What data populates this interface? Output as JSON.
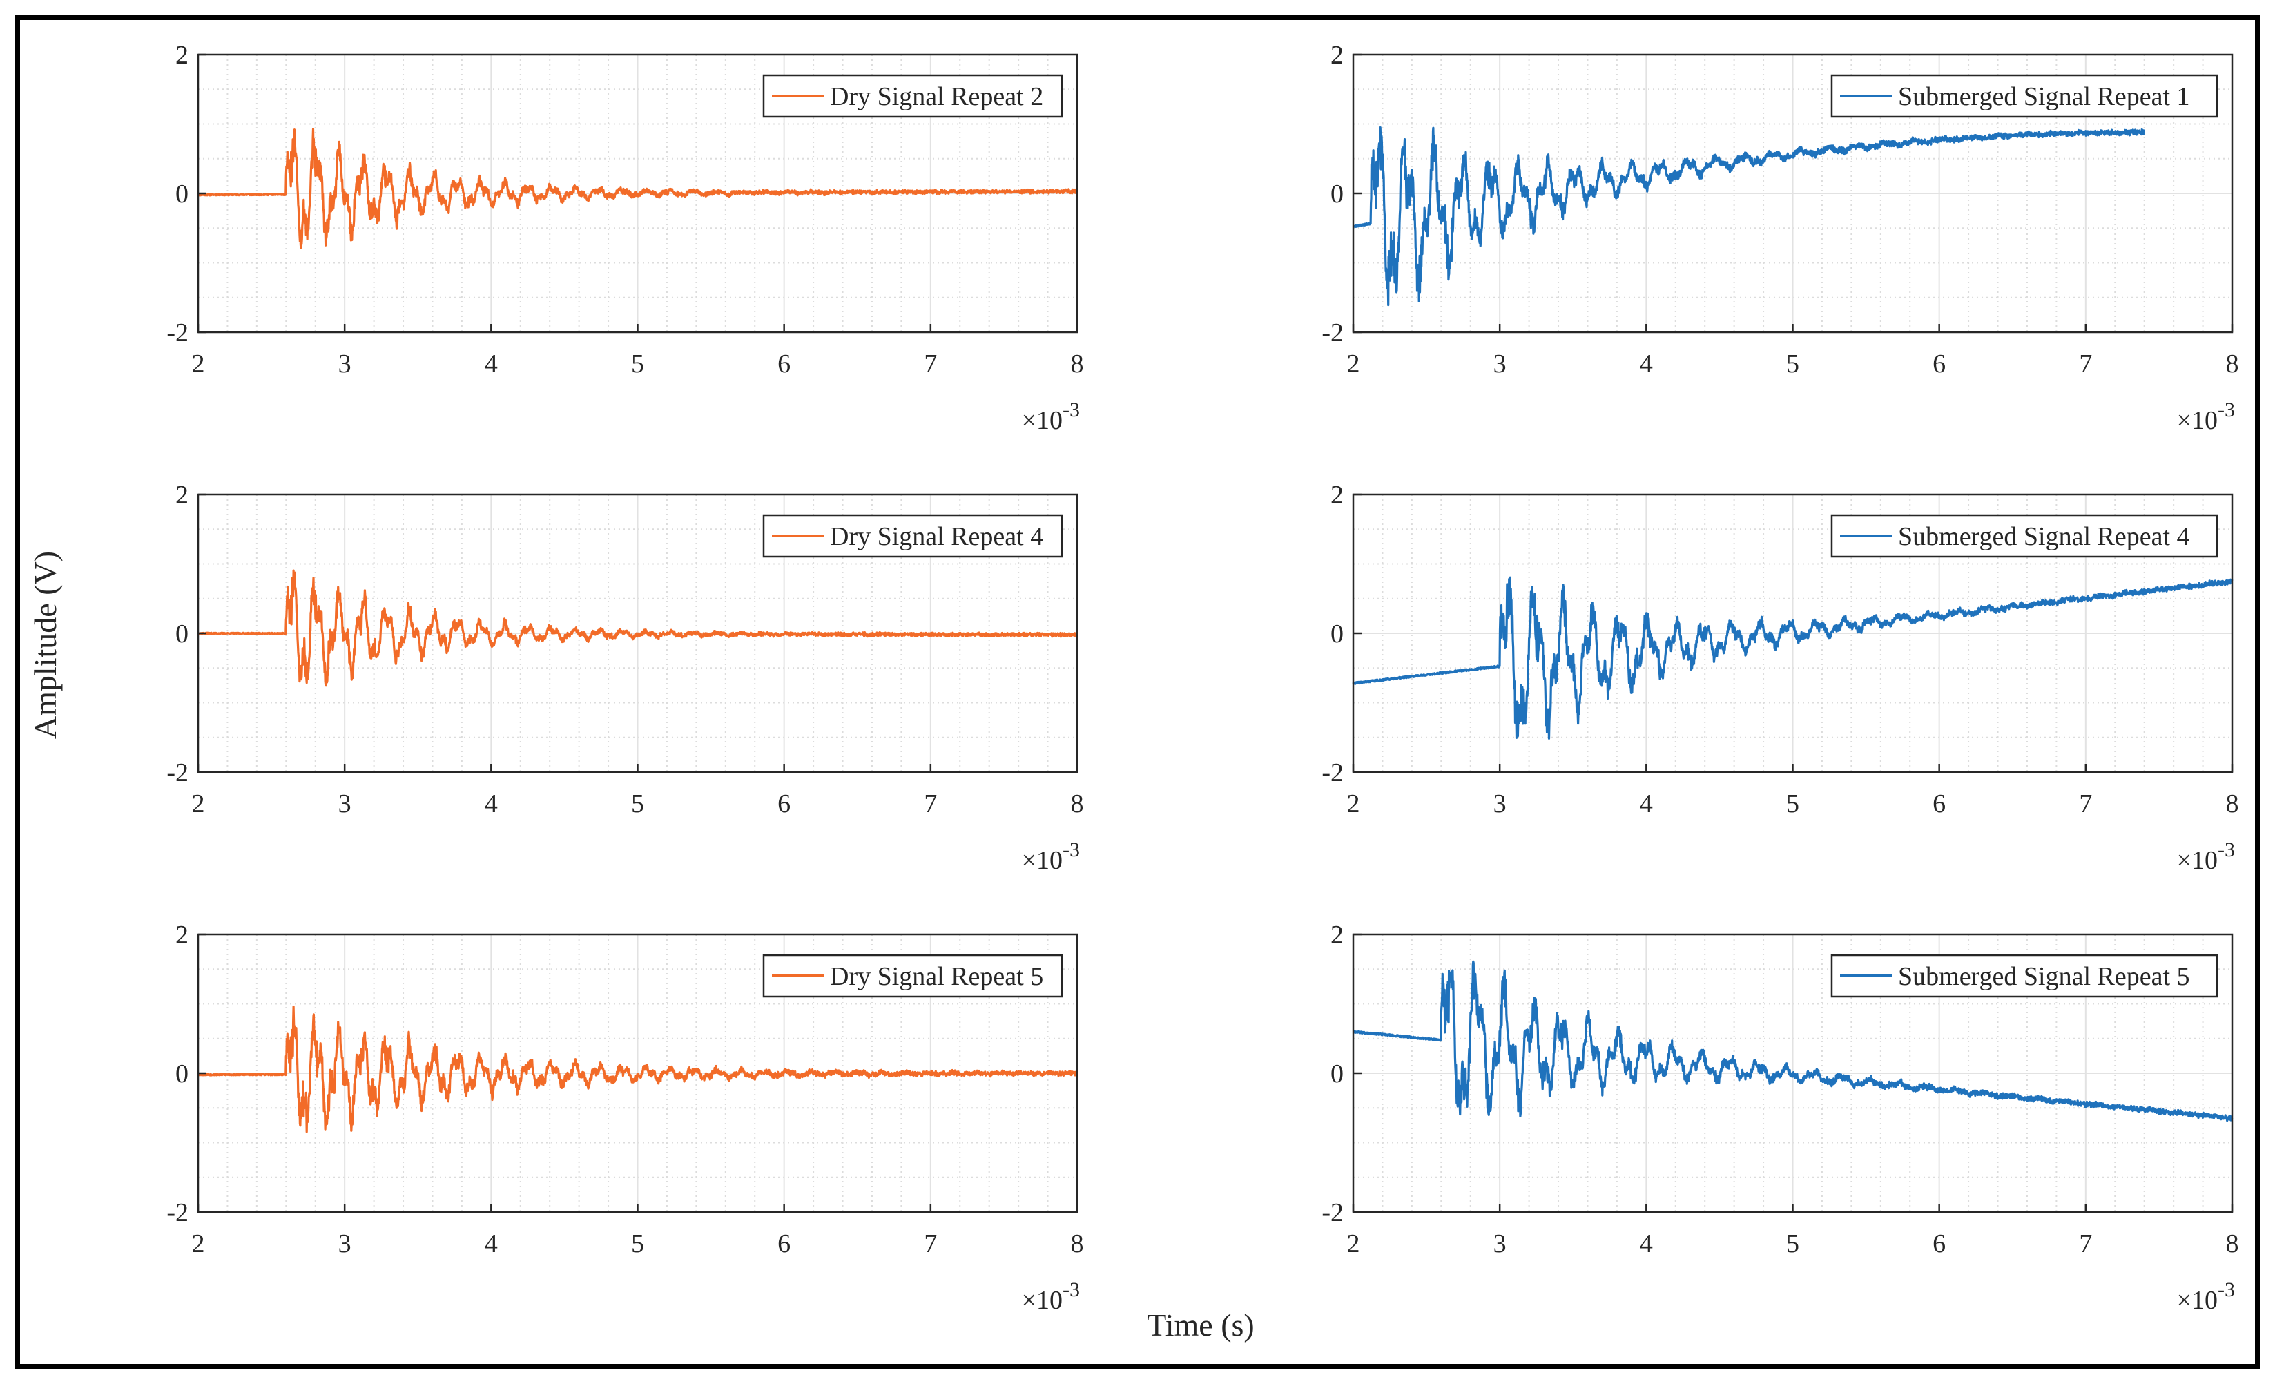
{
  "figure": {
    "ylabel": "Amplitude (V)",
    "xlabel": "Time (s)",
    "x_multiplier": "×10",
    "x_multiplier_exp": "-3"
  },
  "colors": {
    "dry": "#F26B28",
    "submerged": "#1F72BC",
    "grid": "#DCDCDC",
    "axis": "#262626"
  },
  "chart_data": [
    {
      "type": "line",
      "legend": "Dry Signal Repeat 2",
      "color": "#F26B28",
      "xlim": [
        0.002,
        0.008
      ],
      "ylim": [
        -2,
        2
      ],
      "xticks": [
        "2",
        "3",
        "4",
        "5",
        "6",
        "7",
        "8"
      ],
      "yticks": [
        "2",
        "0",
        "-2"
      ],
      "signal": {
        "onset": 0.0026,
        "amplitude": 0.92,
        "decay": 0.00082,
        "freq": 6200,
        "noise": 0.045,
        "start_level": -0.02,
        "end_level": 0.03,
        "seed": 11
      }
    },
    {
      "type": "line",
      "legend": "Submerged Signal Repeat 1",
      "color": "#1F72BC",
      "xlim": [
        0.002,
        0.008
      ],
      "ylim": [
        -2,
        2
      ],
      "xticks": [
        "2",
        "3",
        "4",
        "5",
        "6",
        "7",
        "8"
      ],
      "yticks": [
        "2",
        "0",
        "-2"
      ],
      "signal": {
        "onset": 0.00212,
        "amplitude": 1.4,
        "decay": 0.0009,
        "freq": 5200,
        "noise": 0.06,
        "start_level": -0.48,
        "end_level": 0.88,
        "x_end": 0.0074,
        "seed": 23
      }
    },
    {
      "type": "line",
      "legend": "Dry Signal Repeat 4",
      "color": "#F26B28",
      "xlim": [
        0.002,
        0.008
      ],
      "ylim": [
        -2,
        2
      ],
      "xticks": [
        "2",
        "3",
        "4",
        "5",
        "6",
        "7",
        "8"
      ],
      "yticks": [
        "2",
        "0",
        "-2"
      ],
      "signal": {
        "onset": 0.0026,
        "amplitude": 0.92,
        "decay": 0.0008,
        "freq": 6200,
        "noise": 0.04,
        "start_level": 0.0,
        "end_level": -0.02,
        "seed": 37
      }
    },
    {
      "type": "line",
      "legend": "Submerged Signal Repeat 4",
      "color": "#1F72BC",
      "xlim": [
        0.002,
        0.008
      ],
      "ylim": [
        -2,
        2
      ],
      "xticks": [
        "2",
        "3",
        "4",
        "5",
        "6",
        "7",
        "8"
      ],
      "yticks": [
        "2",
        "0",
        "-2"
      ],
      "signal": {
        "onset": 0.003,
        "amplitude": 1.3,
        "decay": 0.0009,
        "freq": 5200,
        "noise": 0.06,
        "start_level": -0.72,
        "end_level": 0.75,
        "seed": 41
      }
    },
    {
      "type": "line",
      "legend": "Dry Signal Repeat 5",
      "color": "#F26B28",
      "xlim": [
        0.002,
        0.008
      ],
      "ylim": [
        -2,
        2
      ],
      "xticks": [
        "2",
        "3",
        "4",
        "5",
        "6",
        "7",
        "8"
      ],
      "yticks": [
        "2",
        "0",
        "-2"
      ],
      "signal": {
        "onset": 0.0026,
        "amplitude": 0.9,
        "decay": 0.0011,
        "freq": 6200,
        "noise": 0.05,
        "start_level": -0.02,
        "end_level": 0.0,
        "seed": 53
      }
    },
    {
      "type": "line",
      "legend": "Submerged Signal Repeat 5",
      "color": "#1F72BC",
      "xlim": [
        0.002,
        0.008
      ],
      "ylim": [
        -2,
        2
      ],
      "xticks": [
        "2",
        "3",
        "4",
        "5",
        "6",
        "7",
        "8"
      ],
      "yticks": [
        "2",
        "0",
        "-2"
      ],
      "signal": {
        "onset": 0.0026,
        "amplitude": 1.35,
        "decay": 0.0009,
        "freq": 5200,
        "noise": 0.06,
        "start_level": 0.6,
        "end_level": -0.65,
        "seed": 67
      }
    }
  ]
}
